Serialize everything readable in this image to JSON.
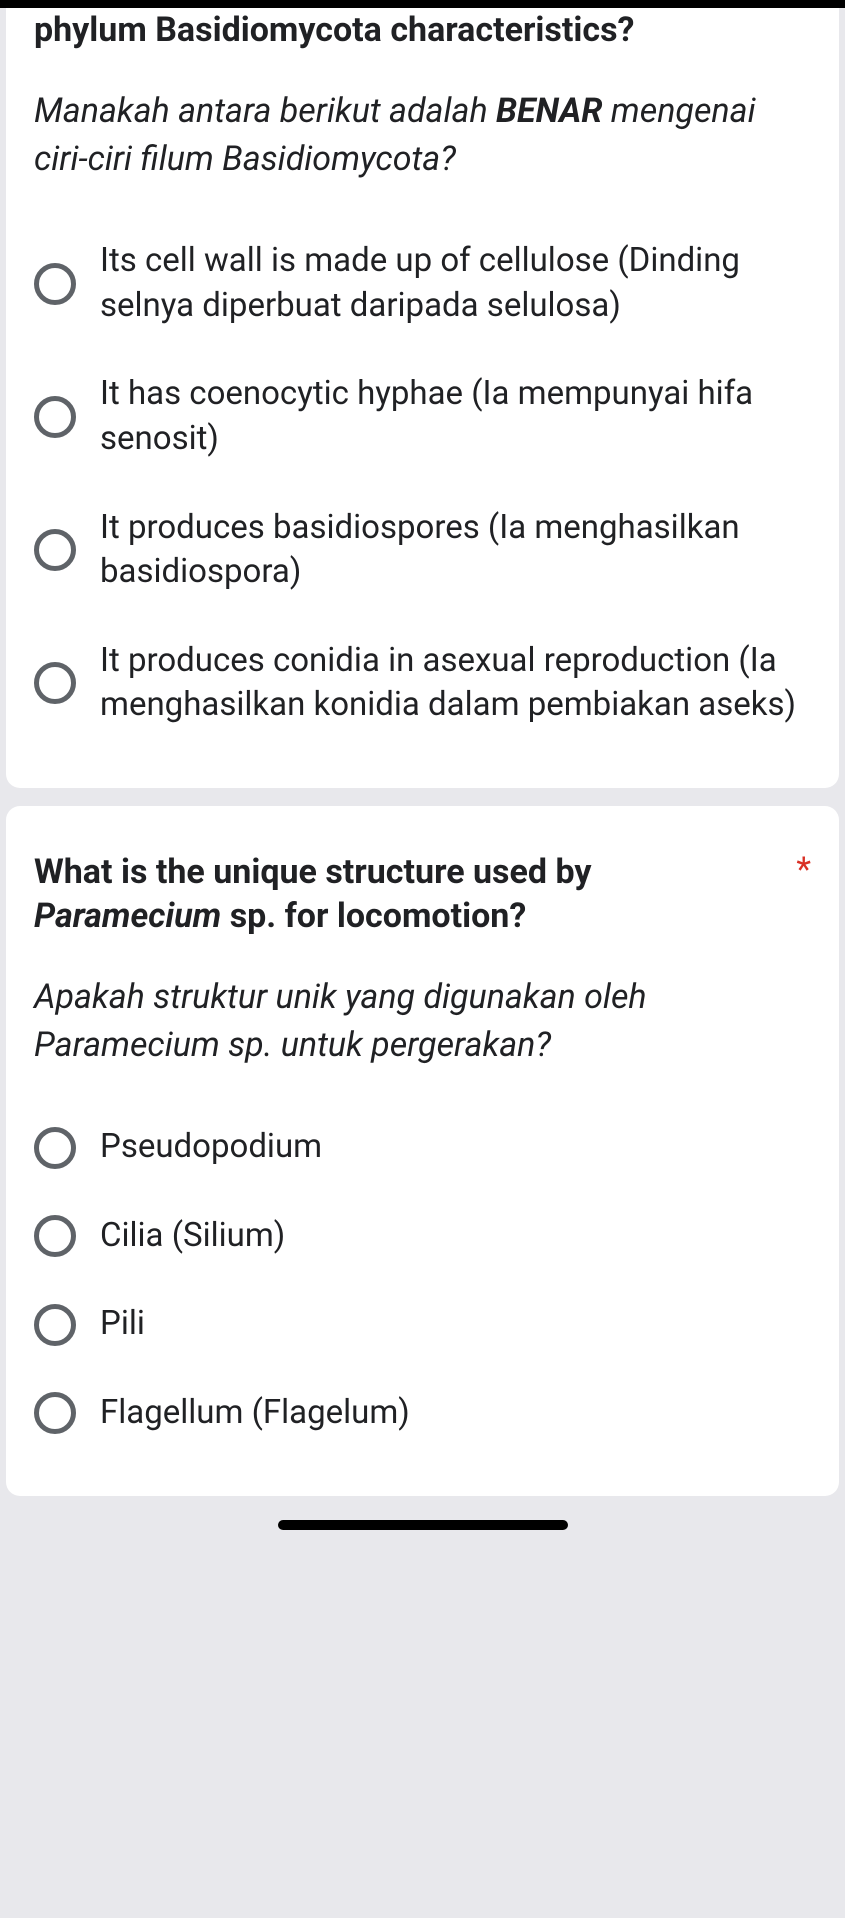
{
  "q1": {
    "title_en": "phylum Basidiomycota characteristics?",
    "title_ms_pre": "Manakah antara berikut adalah ",
    "title_ms_bold": "BENAR",
    "title_ms_post": " mengenai ciri-ciri filum Basidiomycota?",
    "options": [
      "Its cell wall is made up of cellulose (Dinding selnya diperbuat daripada selulosa)",
      "It has coenocytic hyphae (Ia mempunyai hifa senosit)",
      "It produces basidiospores (Ia menghasilkan basidiospora)",
      "It produces conidia in asexual reproduction (Ia menghasilkan konidia dalam pembiakan aseks)"
    ]
  },
  "q2": {
    "title_en_pre": "What is the unique structure used by ",
    "title_en_italic": "Paramecium",
    "title_en_post": " sp. for locomotion?",
    "required_mark": "*",
    "title_ms": "Apakah struktur unik yang digunakan oleh Paramecium sp. untuk pergerakan?",
    "options": [
      "Pseudopodium",
      "Cilia (Silium)",
      "Pili",
      "Flagellum (Flagelum)"
    ]
  }
}
